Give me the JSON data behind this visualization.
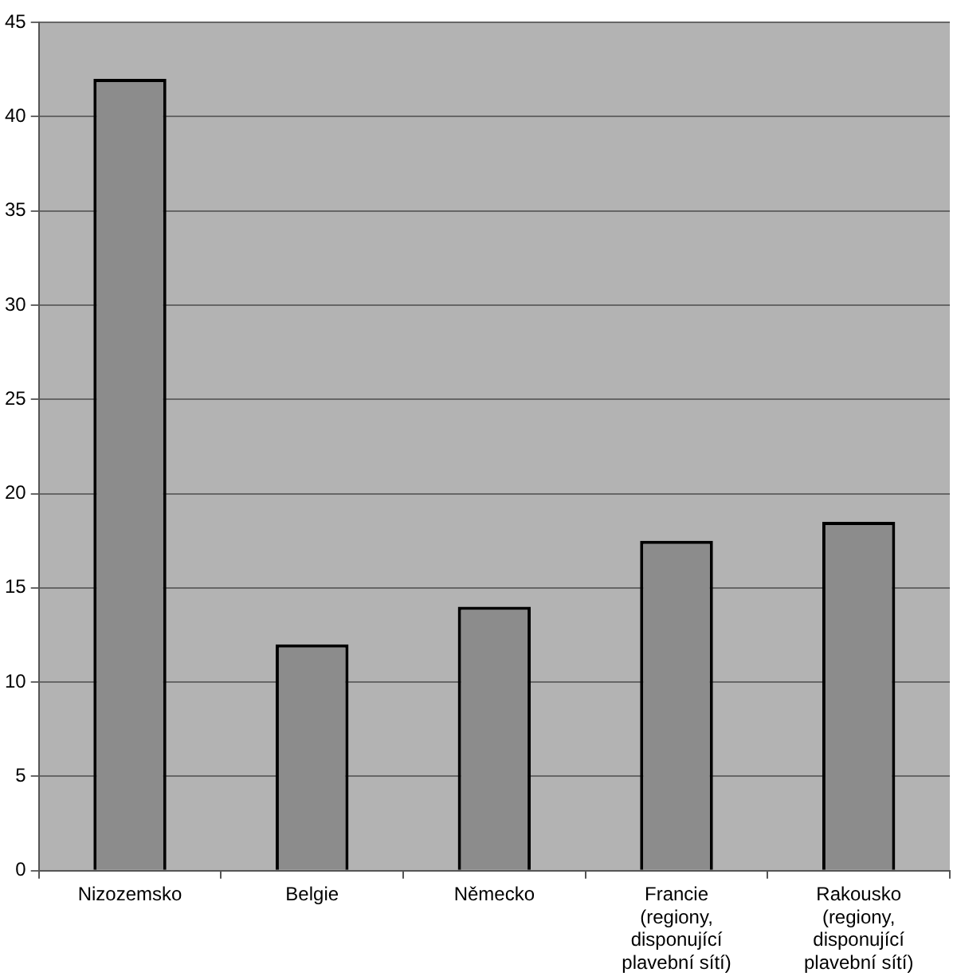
{
  "chart_data": {
    "type": "bar",
    "categories": [
      "Nizozemsko",
      "Belgie",
      "Německo",
      "Francie (regiony, disponující plavební sítí)",
      "Rakousko (regiony, disponující plavební sítí)"
    ],
    "values": [
      42,
      12,
      14,
      17.5,
      18.5
    ],
    "color": "#8c8c8c",
    "ylim": [
      0,
      45
    ],
    "yticks": [
      0,
      5,
      10,
      15,
      20,
      25,
      30,
      35,
      40,
      45
    ],
    "grid": "y"
  }
}
